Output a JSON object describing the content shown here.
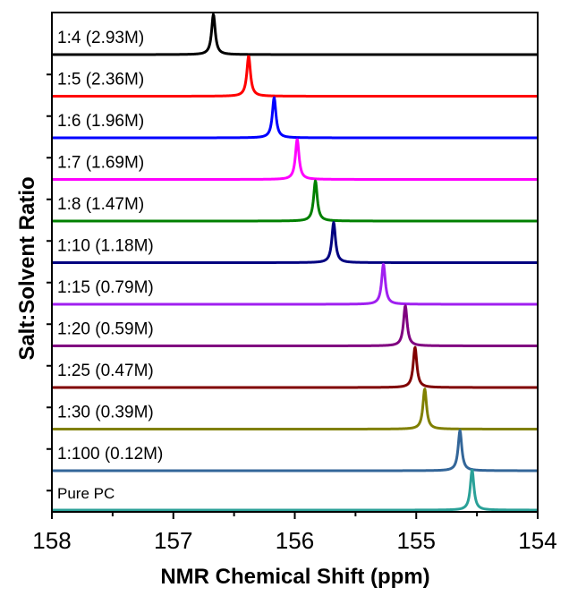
{
  "chart_data": {
    "type": "line",
    "xlabel": "NMR Chemical Shift (ppm)",
    "ylabel": "Salt:Solvent Ratio",
    "xlim": [
      158,
      154
    ],
    "x_reversed": true,
    "xticks": [
      158,
      157,
      156,
      155,
      154
    ],
    "xtick_labels": [
      "158",
      "157",
      "156",
      "155",
      "154"
    ],
    "stacked_offset": true,
    "grid": false,
    "series": [
      {
        "name": "1:4 (2.93M)",
        "peak_ppm": 156.67,
        "color": "#000000"
      },
      {
        "name": "1:5 (2.36M)",
        "peak_ppm": 156.38,
        "color": "#ff0000"
      },
      {
        "name": "1:6 (1.96M)",
        "peak_ppm": 156.17,
        "color": "#0000ff"
      },
      {
        "name": "1:7 (1.69M)",
        "peak_ppm": 155.98,
        "color": "#ff00ff"
      },
      {
        "name": "1:8 (1.47M)",
        "peak_ppm": 155.83,
        "color": "#008000"
      },
      {
        "name": "1:10 (1.18M)",
        "peak_ppm": 155.68,
        "color": "#000080"
      },
      {
        "name": "1:15 (0.79M)",
        "peak_ppm": 155.27,
        "color": "#a020f0"
      },
      {
        "name": "1:20 (0.59M)",
        "peak_ppm": 155.09,
        "color": "#800080"
      },
      {
        "name": "1:25 (0.47M)",
        "peak_ppm": 155.01,
        "color": "#800000"
      },
      {
        "name": "1:30 (0.39M)",
        "peak_ppm": 154.93,
        "color": "#808000"
      },
      {
        "name": "1:100 (0.12M)",
        "peak_ppm": 154.64,
        "color": "#336699"
      },
      {
        "name": "Pure PC",
        "peak_ppm": 154.54,
        "color": "#2aa198"
      }
    ]
  }
}
